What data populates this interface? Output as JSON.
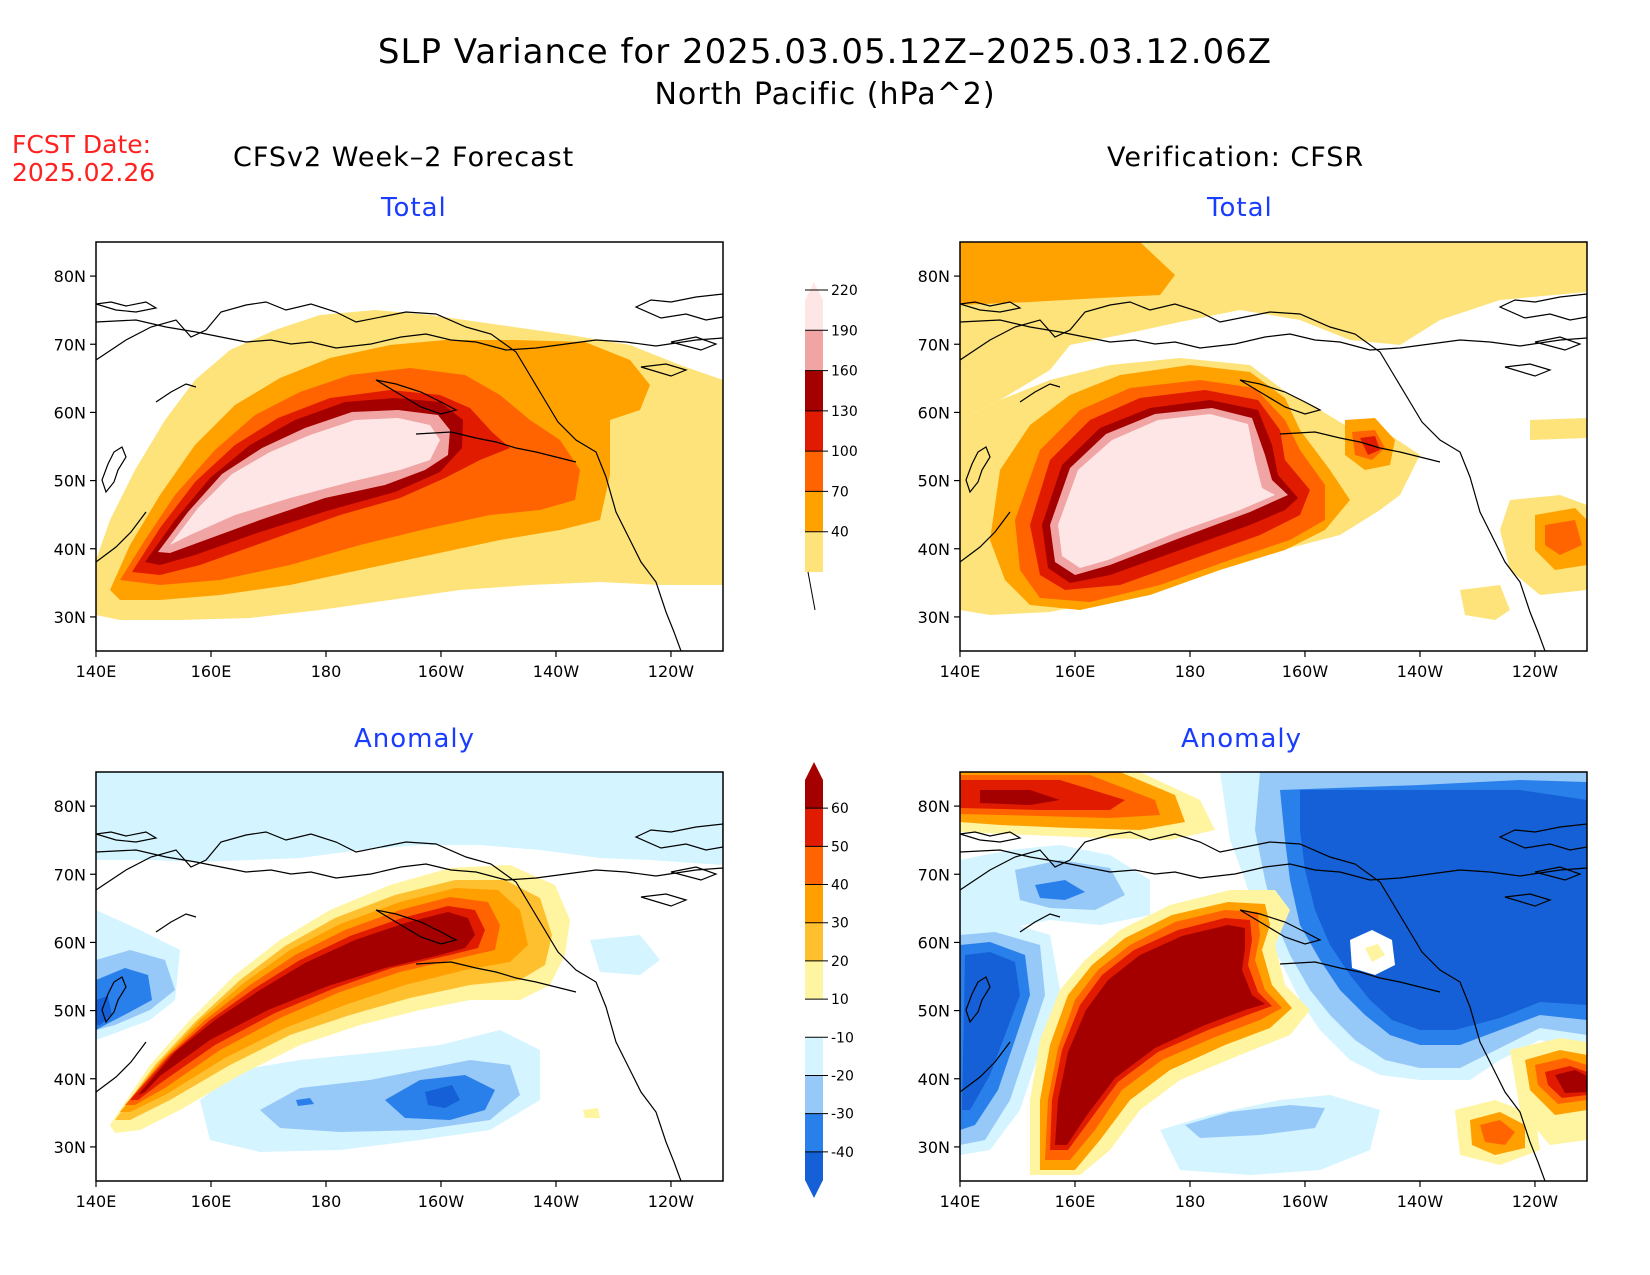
{
  "title": {
    "line1": "SLP Variance for 2025.03.05.12Z–2025.03.12.06Z",
    "line2": "North Pacific (hPa^2)"
  },
  "forecast_date": {
    "label": "FCST Date:",
    "value": "2025.02.26"
  },
  "columns": {
    "left": "CFSv2 Week–2 Forecast",
    "right": "Verification: CFSR"
  },
  "panel_titles": {
    "top_left": "Total",
    "top_right": "Total",
    "bottom_left": "Anomaly",
    "bottom_right": "Anomaly"
  },
  "axes": {
    "x_ticks": [
      "140E",
      "160E",
      "180",
      "160W",
      "140W",
      "120W"
    ],
    "y_ticks": [
      "30N",
      "40N",
      "50N",
      "60N",
      "70N",
      "80N"
    ]
  },
  "colorbar_total": {
    "levels": [
      "40",
      "70",
      "100",
      "130",
      "160",
      "190",
      "220"
    ],
    "colors": [
      "#fde37a",
      "#ffa200",
      "#ff6400",
      "#e11b00",
      "#a50000",
      "#f0a4a4",
      "#ffe6e6"
    ]
  },
  "colorbar_anomaly": {
    "levels": [
      "-40",
      "-30",
      "-20",
      "-10",
      "10",
      "20",
      "30",
      "40",
      "50",
      "60"
    ],
    "colors": [
      "#1560d6",
      "#2a80ea",
      "#96c8f8",
      "#d4f4ff",
      "#ffffff",
      "#fff4a0",
      "#ffc030",
      "#ffa000",
      "#ff6400",
      "#e11b00",
      "#a50000"
    ]
  },
  "chart_data": [
    {
      "type": "heatmap",
      "panel": "CFSv2 Week-2 Forecast — Total",
      "x_range": [
        "140E",
        "110W"
      ],
      "y_range": [
        "25N",
        "85N"
      ],
      "features": [
        {
          "level_min": 220,
          "center": "175E, 50N",
          "extent": "165E–165W, 38N–62N"
        },
        {
          "level_min": 130,
          "center": "175E, 50N",
          "extent": "160E–150W, 35N–65N"
        },
        {
          "level_min": 70,
          "extent": "150E–130W, 33N–70N"
        },
        {
          "level_min": 40,
          "extent": "140E–110W, 30N–75N"
        }
      ]
    },
    {
      "type": "heatmap",
      "panel": "Verification CFSR — Total",
      "x_range": [
        "140E",
        "110W"
      ],
      "y_range": [
        "25N",
        "85N"
      ],
      "features": [
        {
          "level_min": 220,
          "center": "180, 50N",
          "extent": "155E–162W, 35N–62N"
        },
        {
          "level_min": 130,
          "location": "148W, 55N"
        },
        {
          "level_min": 100,
          "location": "113W, 42N"
        },
        {
          "level_min": 70,
          "location": "140E–160E, 80N–85N"
        },
        {
          "level_min": 40,
          "extent": "140E–110W, 28N–85N"
        }
      ]
    },
    {
      "type": "heatmap",
      "panel": "CFSv2 Week-2 Forecast — Anomaly",
      "x_range": [
        "140E",
        "110W"
      ],
      "y_range": [
        "25N",
        "85N"
      ],
      "features": [
        {
          "level_min": 60,
          "extent": "150E–155W, 38N–64N"
        },
        {
          "level_max": -30,
          "location": "160W, 39N"
        },
        {
          "level_max": -30,
          "location": "145E, 48N"
        },
        {
          "level_max": -10,
          "extent": "140E–110W, 68N–85N"
        }
      ]
    },
    {
      "type": "heatmap",
      "panel": "Verification CFSR — Anomaly",
      "x_range": [
        "140E",
        "110W"
      ],
      "y_range": [
        "25N",
        "85N"
      ],
      "features": [
        {
          "level_min": 60,
          "extent": "155E–163W, 30N–65N"
        },
        {
          "level_min": 50,
          "location": "145E–160E, 80N"
        },
        {
          "level_min": 50,
          "location": "113W, 41N"
        },
        {
          "level_min": 40,
          "location": "125W, 32N"
        },
        {
          "level_min": 10,
          "location": "148W, 55N"
        },
        {
          "level_max": -40,
          "extent": "160W–110W, 45N–85N"
        },
        {
          "level_max": -40,
          "extent": "140E–152E, 35N–60N"
        }
      ]
    }
  ]
}
